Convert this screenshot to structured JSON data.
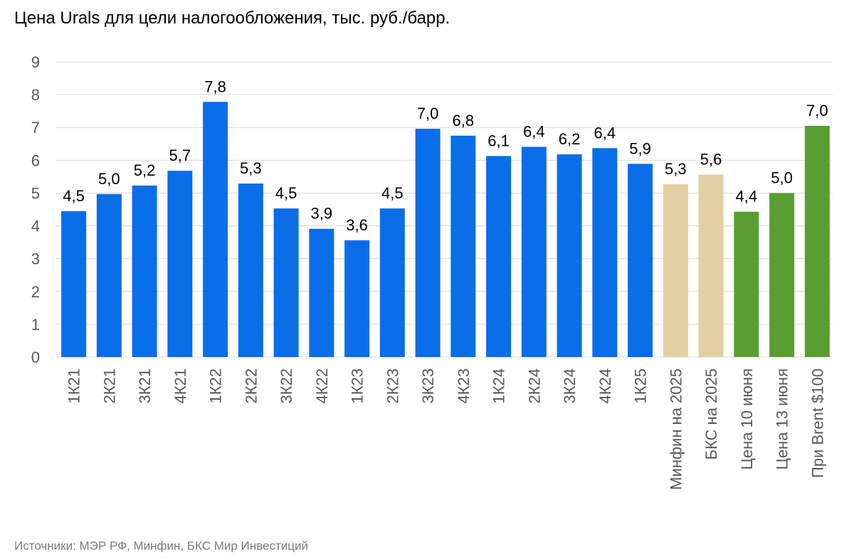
{
  "chart_data": {
    "type": "bar",
    "title": "Цена Urals для цели налогообложения, тыс. руб./барр.",
    "source": "Источники: МЭР РФ, Минфин, БКС Мир Инвестиций",
    "xlabel": "",
    "ylabel": "",
    "ylim": [
      0,
      9
    ],
    "yticks": [
      0,
      1,
      2,
      3,
      4,
      5,
      6,
      7,
      8,
      9
    ],
    "grid": true,
    "legend": "none",
    "categories": [
      "1К21",
      "2К21",
      "3К21",
      "4К21",
      "1К22",
      "2К22",
      "3К22",
      "4К22",
      "1К23",
      "2К23",
      "3К23",
      "4К23",
      "1К24",
      "2К24",
      "3К24",
      "4К24",
      "1К25",
      "Минфин на 2025",
      "БКС на 2025",
      "Цена 10 июня",
      "Цена 13 июня",
      "При Brent $100"
    ],
    "values": [
      4.45,
      4.97,
      5.23,
      5.68,
      7.78,
      5.29,
      4.53,
      3.91,
      3.56,
      4.53,
      6.96,
      6.75,
      6.13,
      6.41,
      6.18,
      6.37,
      5.89,
      5.27,
      5.56,
      4.43,
      5.0,
      7.05
    ],
    "value_labels": [
      "4,5",
      "5,0",
      "5,2",
      "5,7",
      "7,8",
      "5,3",
      "4,5",
      "3,9",
      "3,6",
      "4,5",
      "7,0",
      "6,8",
      "6,1",
      "6,4",
      "6,2",
      "6,4",
      "5,9",
      "5,3",
      "5,6",
      "4,4",
      "5,0",
      "7,0"
    ],
    "bar_colors": [
      "#0a6ee8",
      "#0a6ee8",
      "#0a6ee8",
      "#0a6ee8",
      "#0a6ee8",
      "#0a6ee8",
      "#0a6ee8",
      "#0a6ee8",
      "#0a6ee8",
      "#0a6ee8",
      "#0a6ee8",
      "#0a6ee8",
      "#0a6ee8",
      "#0a6ee8",
      "#0a6ee8",
      "#0a6ee8",
      "#0a6ee8",
      "#e3cfa2",
      "#e3cfa2",
      "#5a9e32",
      "#5a9e32",
      "#5a9e32"
    ]
  },
  "colors": {
    "gridline": "#d9d9d9",
    "axis_text": "#595959",
    "label_text": "#000000",
    "source_text": "#7a7a7a"
  }
}
